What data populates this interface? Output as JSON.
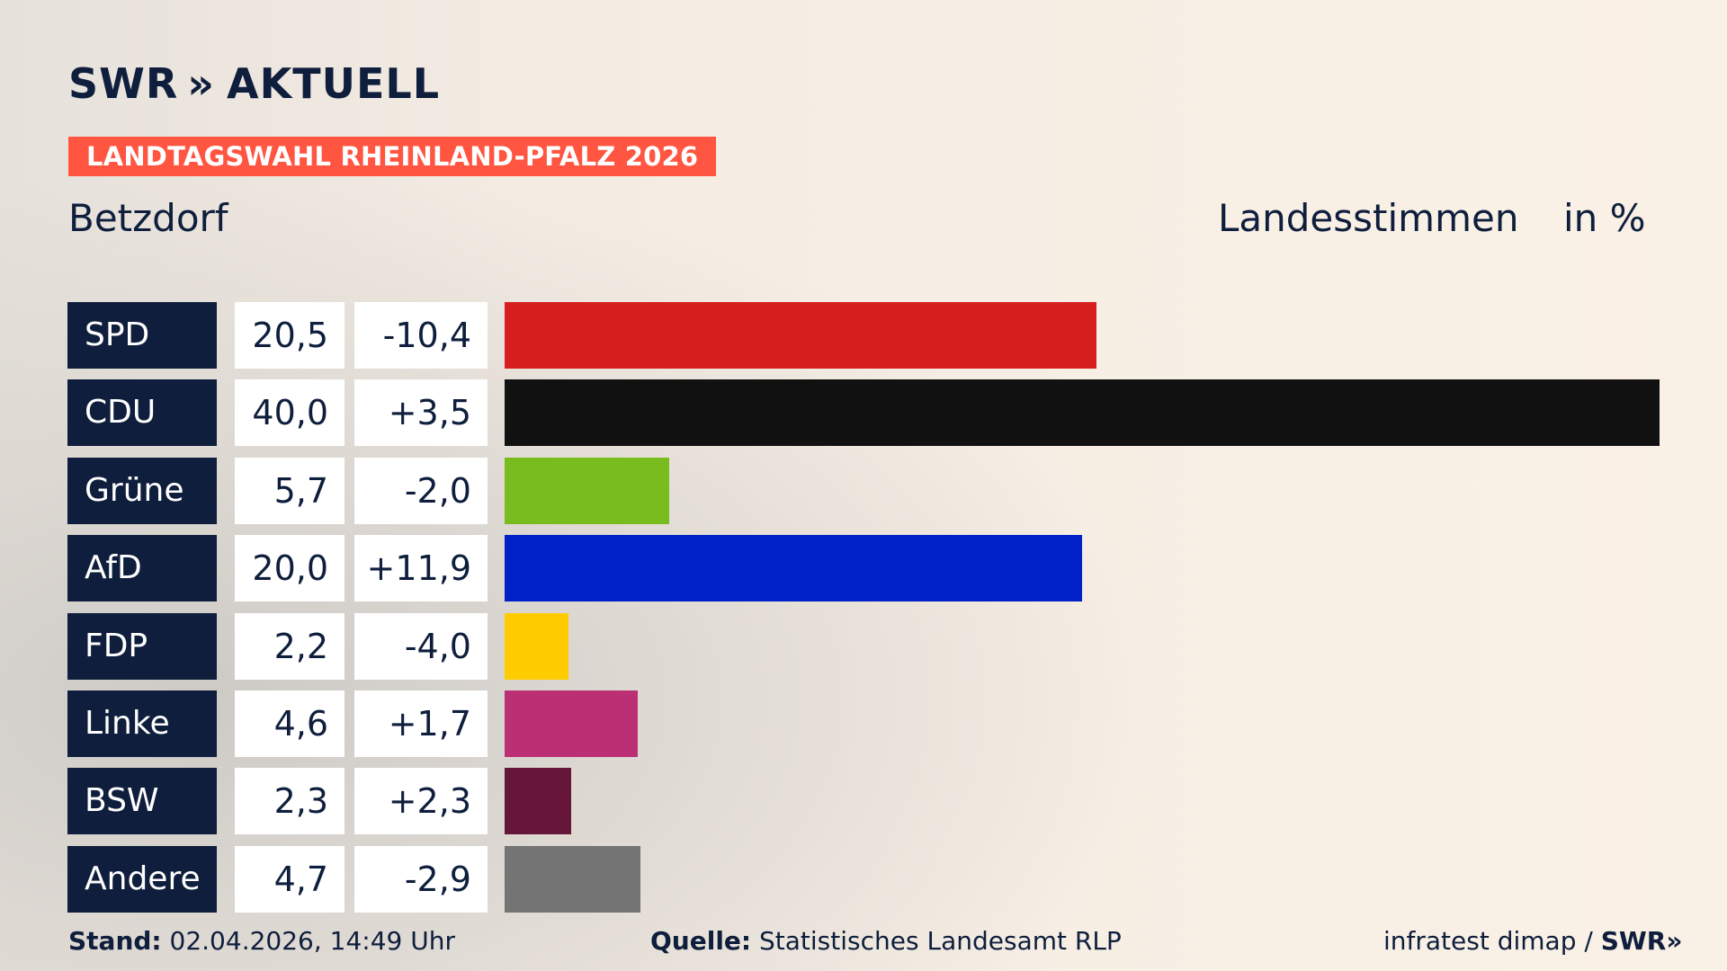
{
  "header": {
    "brand": "SWR",
    "brand_chevrons": "»",
    "product": "AKTUELL",
    "banner": "LANDTAGSWAHL RHEINLAND-PFALZ 2026",
    "region": "Betzdorf",
    "column_label": "Landesstimmen",
    "unit_label": "in %"
  },
  "chart_data": {
    "type": "bar",
    "orientation": "horizontal",
    "title": "LANDTAGSWAHL RHEINLAND-PFALZ 2026",
    "subtitle": "Betzdorf",
    "xlabel": "Landesstimmen",
    "unit": "in %",
    "xlim": [
      0,
      40
    ],
    "grid": false,
    "categories": [
      "SPD",
      "CDU",
      "Grüne",
      "AfD",
      "FDP",
      "Linke",
      "BSW",
      "Andere"
    ],
    "values": [
      20.5,
      40.0,
      5.7,
      20.0,
      2.2,
      4.6,
      2.3,
      4.7
    ],
    "value_labels": [
      "20,5",
      "40,0",
      "5,7",
      "20,0",
      "2,2",
      "4,6",
      "2,3",
      "4,7"
    ],
    "change_labels": [
      "-10,4",
      "+3,5",
      "-2,0",
      "+11,9",
      "-4,0",
      "+1,7",
      "+2,3",
      "-2,9"
    ],
    "colors": [
      "#d71f1f",
      "#111111",
      "#79bc1e",
      "#0020c8",
      "#ffcc00",
      "#bb2f74",
      "#661638",
      "#747474"
    ]
  },
  "footer": {
    "stand_label": "Stand:",
    "stand_value": "02.04.2026, 14:49 Uhr",
    "source_label": "Quelle:",
    "source_value": "Statistisches Landesamt RLP",
    "credit": "infratest dimap /",
    "credit_brand": "SWR",
    "credit_chevrons": "»"
  }
}
